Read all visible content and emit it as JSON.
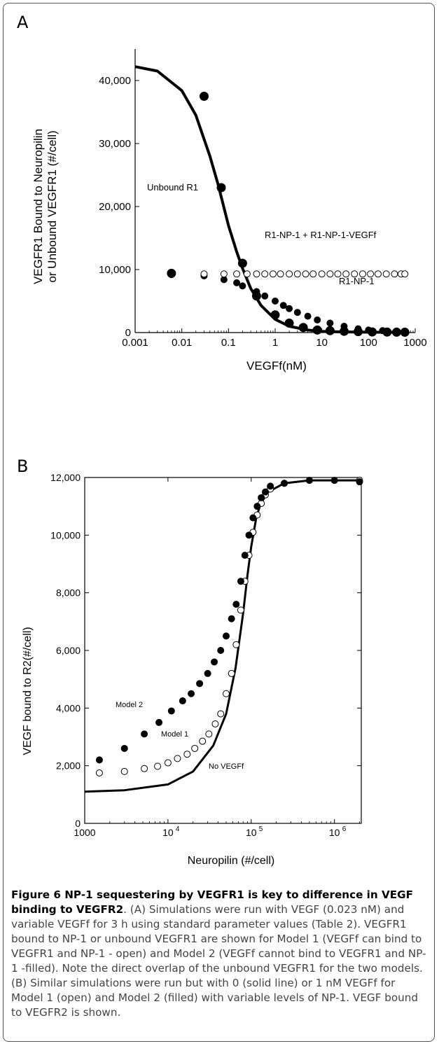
{
  "panels": {
    "a_letter": "A",
    "b_letter": "B"
  },
  "chart_data": [
    {
      "type": "scatter",
      "x_scale": "log",
      "xlim": [
        0.001,
        1000
      ],
      "ylim": [
        0,
        45000
      ],
      "x_ticks": [
        0.001,
        0.01,
        0.1,
        1,
        10,
        100,
        1000
      ],
      "x_tick_labels": [
        "0.001",
        "0.01",
        "0.1",
        "1",
        "10",
        "100",
        "1000"
      ],
      "y_ticks": [
        0,
        10000,
        20000,
        30000,
        40000
      ],
      "y_tick_labels": [
        "0",
        "10,000",
        "20,000",
        "30,000",
        "40,000"
      ],
      "xlabel": "VEGFf(nM)",
      "ylabel_line1": "VEGFR1 Bound to Neuropilin",
      "ylabel_line2": "or Unbound VEGFR1  (#/cell)",
      "grid": false,
      "annotations": [
        "Unbound R1",
        "R1-NP-1 + R1-NP-1-VEGFf",
        "R1-NP-1"
      ],
      "series": [
        {
          "style": "line",
          "x": [
            0.001,
            0.003,
            0.01,
            0.02,
            0.04,
            0.06,
            0.1,
            0.15,
            0.2,
            0.3,
            0.5,
            1,
            2,
            5,
            10,
            30,
            100,
            600
          ],
          "y": [
            42200,
            41500,
            38400,
            34500,
            28000,
            23500,
            17000,
            12800,
            10200,
            7000,
            4300,
            2100,
            1000,
            400,
            200,
            100,
            60,
            40
          ]
        },
        {
          "style": "filled",
          "x": [
            0.006,
            0.03,
            0.08,
            0.15,
            0.2,
            0.4,
            0.6,
            1,
            1.5,
            2,
            3,
            5,
            8,
            15,
            30,
            60,
            100,
            200,
            400,
            600
          ],
          "y": [
            9200,
            9000,
            8400,
            7900,
            7400,
            6500,
            5800,
            5000,
            4300,
            3800,
            3200,
            2600,
            2000,
            1500,
            1000,
            600,
            400,
            300,
            250,
            200
          ]
        },
        {
          "style": "open",
          "x": [
            0.006,
            0.03,
            0.08,
            0.15,
            0.25,
            0.4,
            0.6,
            0.9,
            1.3,
            2,
            3,
            4.5,
            6.5,
            10,
            15,
            22,
            33,
            50,
            75,
            110,
            160,
            240,
            360,
            500,
            600
          ],
          "y": [
            9300,
            9300,
            9300,
            9300,
            9300,
            9300,
            9300,
            9300,
            9300,
            9300,
            9300,
            9300,
            9300,
            9300,
            9300,
            9300,
            9300,
            9300,
            9300,
            9300,
            9300,
            9300,
            9300,
            9300,
            9300
          ]
        },
        {
          "style": "big-filled",
          "x": [
            0.006,
            0.03,
            0.07,
            0.2,
            0.4,
            1,
            2,
            4,
            8,
            15,
            30,
            60,
            120,
            250,
            400,
            600
          ],
          "y": [
            9400,
            37500,
            23000,
            11000,
            5800,
            2800,
            1500,
            800,
            400,
            300,
            200,
            150,
            100,
            80,
            60,
            50
          ]
        }
      ]
    },
    {
      "type": "scatter",
      "x_scale": "log",
      "xlim": [
        1000,
        2100000
      ],
      "ylim": [
        0,
        12000
      ],
      "x_ticks": [
        1000,
        10000,
        100000,
        1000000
      ],
      "x_tick_labels": [
        "1000",
        "10",
        "10",
        "10"
      ],
      "x_tick_exponents": [
        "",
        "4",
        "5",
        "6"
      ],
      "y_ticks": [
        0,
        2000,
        4000,
        6000,
        8000,
        10000,
        12000
      ],
      "y_tick_labels": [
        "0",
        "2,000",
        "4,000",
        "6,000",
        "8,000",
        "10,000",
        "12,000"
      ],
      "xlabel": "Neuropilin (#/cell)",
      "ylabel": "VEGF bound to R2(#/cell)",
      "grid": false,
      "annotations": [
        "Model 2",
        "Model 1",
        "No VEGFf"
      ],
      "series": [
        {
          "name": "No VEGFf",
          "style": "line",
          "x": [
            1000,
            3000,
            10000,
            20000,
            35000,
            50000,
            65000,
            80000,
            90000,
            100000,
            115000,
            130000,
            160000,
            250000,
            500000,
            2000000
          ],
          "y": [
            1100,
            1150,
            1350,
            1800,
            2700,
            3800,
            5400,
            7300,
            8600,
            9600,
            10600,
            11100,
            11500,
            11800,
            11900,
            11900
          ]
        },
        {
          "name": "Model 1",
          "style": "open",
          "x": [
            1500,
            3000,
            5200,
            7500,
            10000,
            13000,
            17000,
            21000,
            26000,
            31000,
            37000,
            43000,
            50000,
            58000,
            66000,
            75000,
            84000,
            94000,
            105000,
            118000,
            132000,
            148000,
            170000,
            250000,
            500000,
            1000000,
            2000000
          ],
          "y": [
            1750,
            1800,
            1900,
            1980,
            2100,
            2250,
            2400,
            2600,
            2850,
            3100,
            3450,
            3800,
            4500,
            5200,
            6200,
            7400,
            8400,
            9300,
            10100,
            10700,
            11100,
            11400,
            11600,
            11800,
            11900,
            11900,
            11900
          ]
        },
        {
          "name": "Model 2",
          "style": "filled",
          "x": [
            1500,
            3000,
            5200,
            7800,
            11000,
            15000,
            19000,
            24000,
            30000,
            36000,
            43000,
            50000,
            58000,
            66000,
            75000,
            84000,
            94000,
            105000,
            118000,
            132000,
            148000,
            170000,
            250000,
            500000,
            1000000,
            2000000
          ],
          "y": [
            2200,
            2600,
            3100,
            3500,
            3900,
            4250,
            4500,
            4850,
            5200,
            5600,
            6000,
            6500,
            7100,
            7600,
            8400,
            9300,
            10000,
            10600,
            11000,
            11300,
            11500,
            11700,
            11800,
            11900,
            11900,
            11850
          ]
        }
      ]
    }
  ],
  "caption": {
    "bold": "Figure 6 NP-1 sequestering by VEGFR1 is key to difference in VEGF binding to VEGFR2",
    "text": ". (A) Simulations were run with VEGF (0.023 nM) and variable VEGFf for 3 h using standard parameter values (Table 2). VEGFR1 bound to NP-1 or unbound VEGFR1 are shown for Model 1 (VEGFf can bind to VEGFR1 and NP-1 - open) and Model 2 (VEGFf cannot bind to VEGFR1 and NP-1 -filled). Note the direct overlap of the unbound VEGFR1 for the two models. (B) Similar simulations were run but with 0 (solid line) or 1 nM VEGFf for Model 1 (open) and Model 2 (filled) with variable levels of NP-1. VEGF bound to VEGFR2 is shown."
  }
}
